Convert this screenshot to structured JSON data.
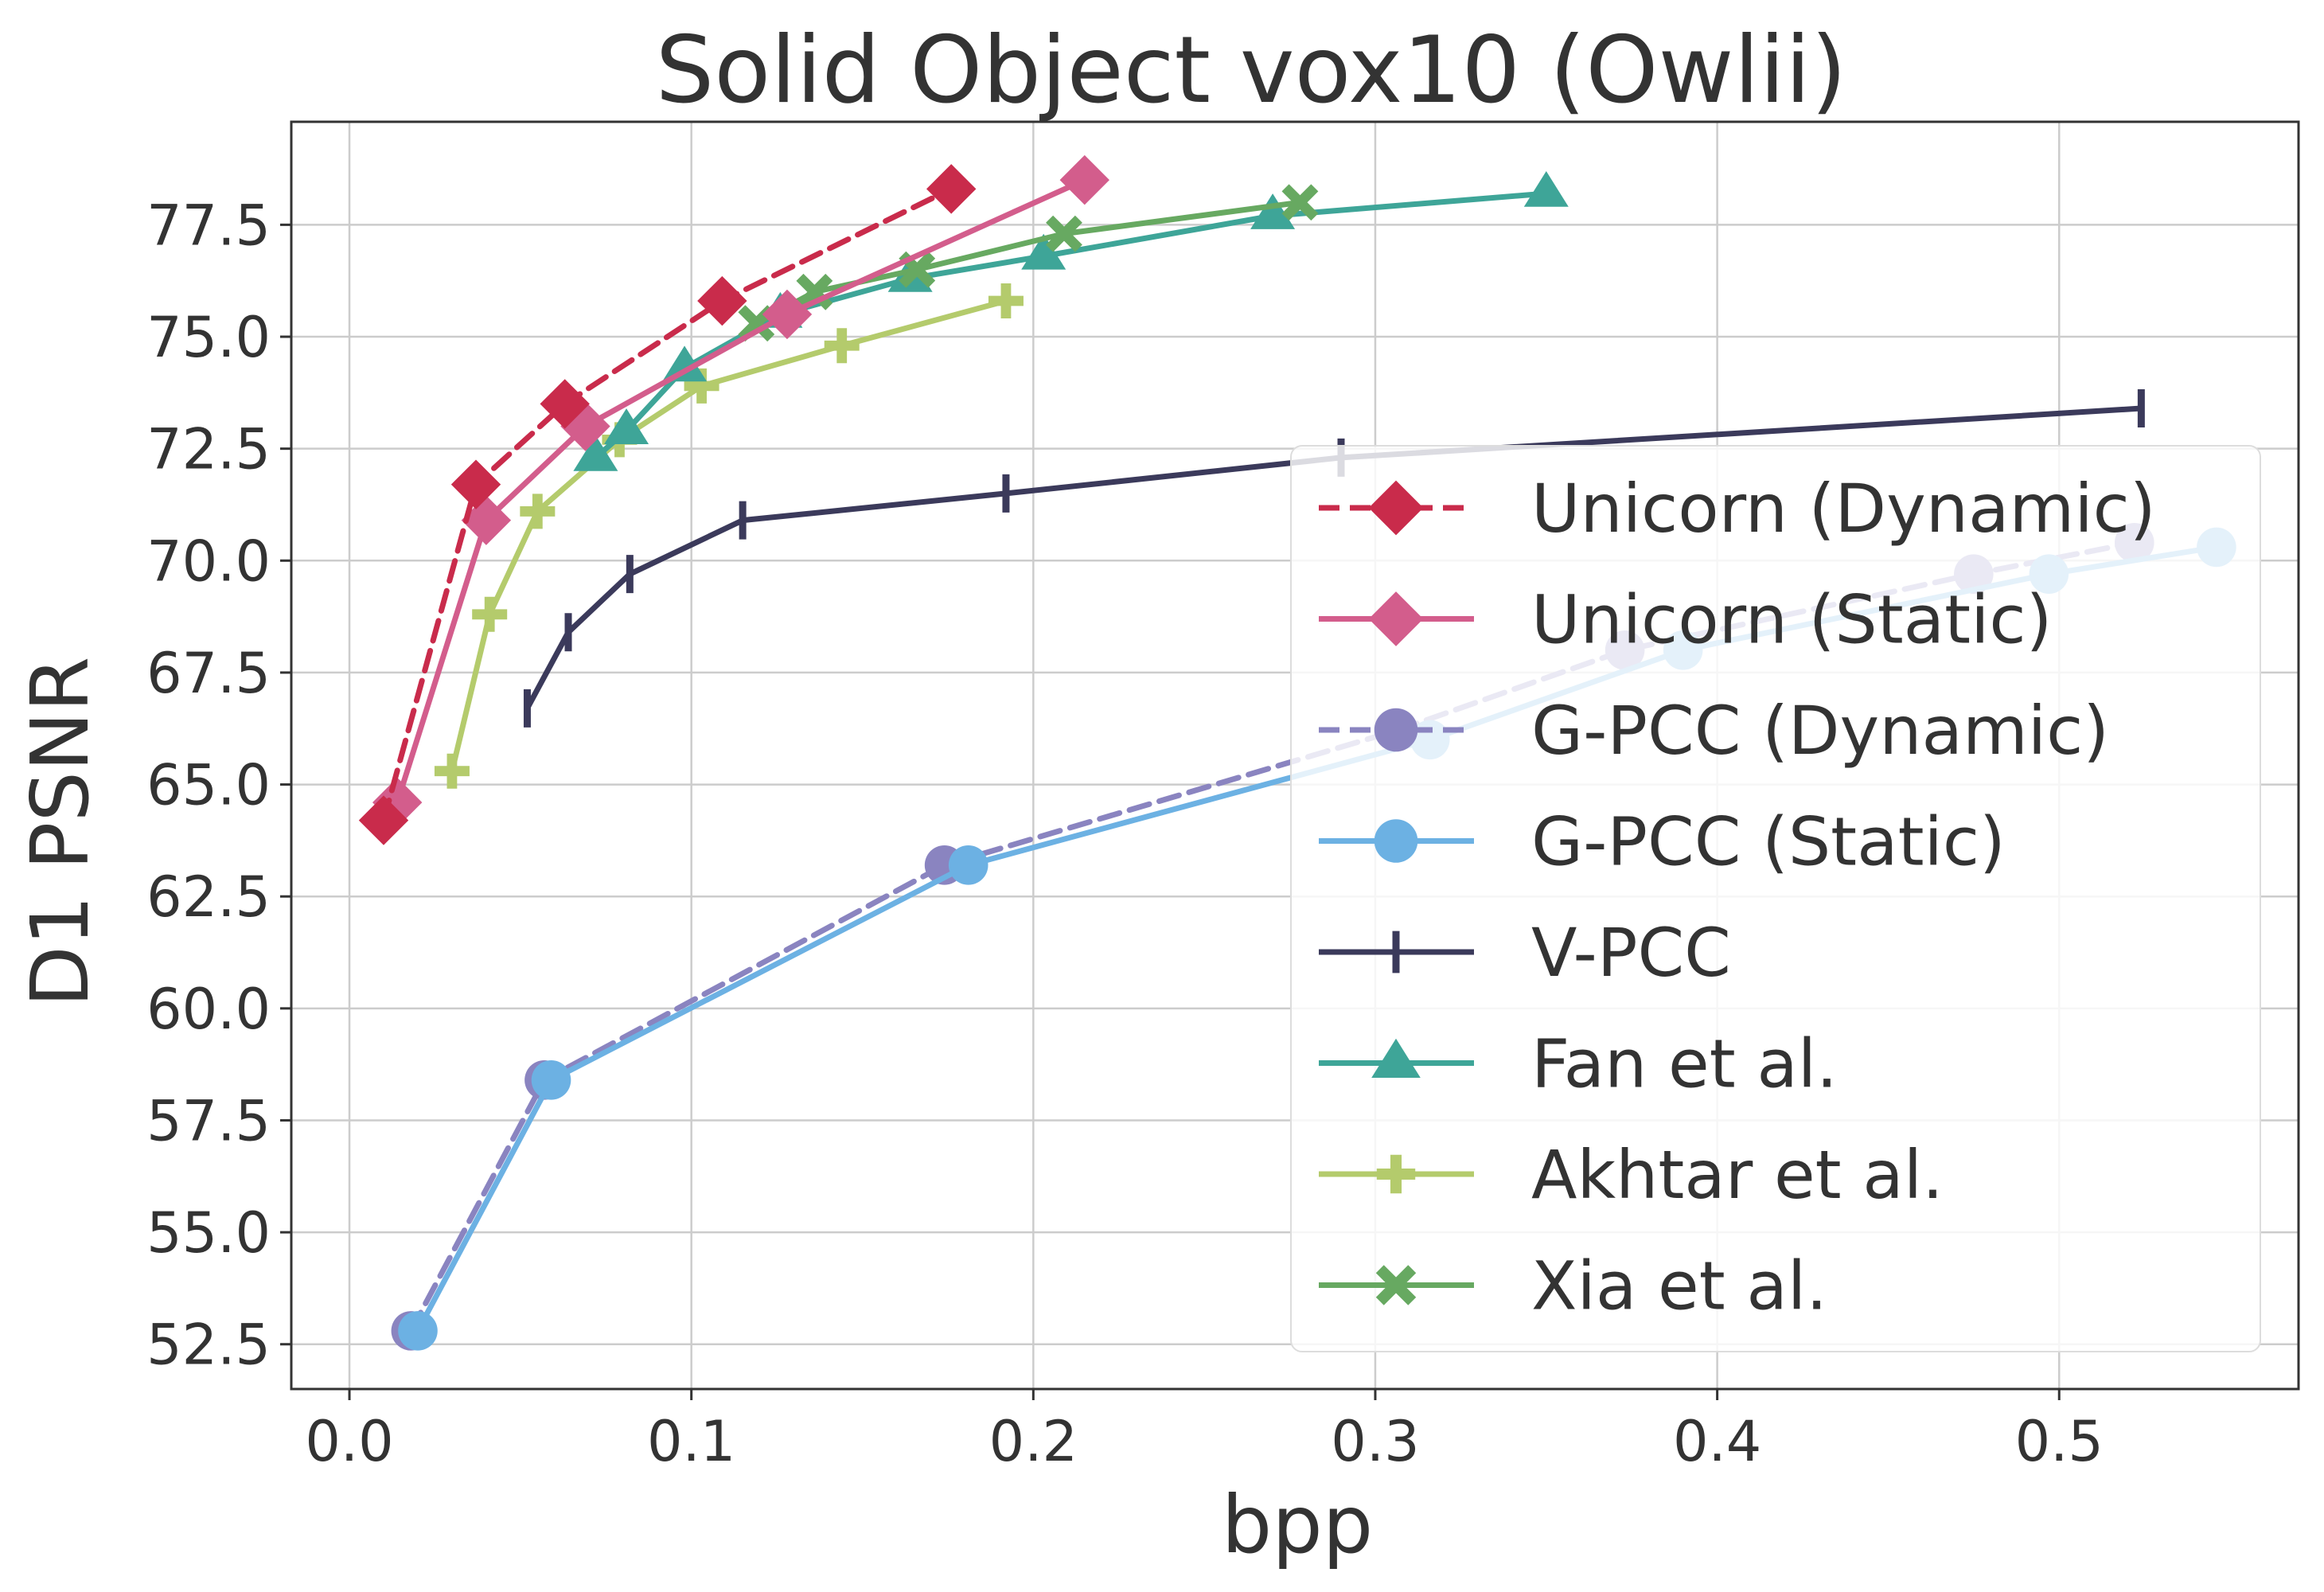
{
  "chart_data": {
    "type": "line",
    "title": "Solid Object vox10 (Owlii)",
    "xlabel": "bpp",
    "ylabel": "D1 PSNR",
    "xlim": [
      -0.017,
      0.57
    ],
    "ylim": [
      51.5,
      79.8
    ],
    "xticks": [
      0.0,
      0.1,
      0.2,
      0.3,
      0.4,
      0.5
    ],
    "xtick_labels": [
      "0.0",
      "0.1",
      "0.2",
      "0.3",
      "0.4",
      "0.5"
    ],
    "yticks": [
      52.5,
      55.0,
      57.5,
      60.0,
      62.5,
      65.0,
      67.5,
      70.0,
      72.5,
      75.0,
      77.5
    ],
    "ytick_labels": [
      "52.5",
      "55.0",
      "57.5",
      "60.0",
      "62.5",
      "65.0",
      "67.5",
      "70.0",
      "72.5",
      "75.0",
      "77.5"
    ],
    "grid": true,
    "legend_position": "center-right",
    "series": [
      {
        "name": "G-PCC (Dynamic)",
        "color": "#8a84c0",
        "dash": true,
        "marker": "circle",
        "x": [
          0.018,
          0.057,
          0.174,
          0.306,
          0.373,
          0.475,
          0.522
        ],
        "y": [
          52.8,
          58.4,
          63.2,
          66.2,
          68.0,
          69.7,
          70.4
        ]
      },
      {
        "name": "G-PCC (Static)",
        "color": "#6cb1e3",
        "dash": false,
        "marker": "circle",
        "x": [
          0.02,
          0.059,
          0.181,
          0.316,
          0.39,
          0.497,
          0.546
        ],
        "y": [
          52.8,
          58.4,
          63.2,
          66.0,
          68.0,
          69.7,
          70.3
        ]
      },
      {
        "name": "V-PCC",
        "color": "#3b3a5b",
        "dash": false,
        "marker": "vline",
        "x": [
          0.052,
          0.064,
          0.082,
          0.115,
          0.192,
          0.29,
          0.524
        ],
        "y": [
          66.7,
          68.4,
          69.7,
          70.9,
          71.5,
          72.3,
          73.4
        ]
      },
      {
        "name": "Akhtar et al.",
        "color": "#b4cb6c",
        "dash": false,
        "marker": "plus",
        "x": [
          0.03,
          0.041,
          0.055,
          0.079,
          0.103,
          0.144,
          0.192
        ],
        "y": [
          65.3,
          68.8,
          71.1,
          72.7,
          73.9,
          74.8,
          75.8
        ]
      },
      {
        "name": "Fan et al.",
        "color": "#3ea598",
        "dash": false,
        "marker": "triangle",
        "x": [
          0.072,
          0.081,
          0.098,
          0.126,
          0.164,
          0.203,
          0.27,
          0.35
        ],
        "y": [
          72.3,
          72.9,
          74.3,
          75.5,
          76.3,
          76.8,
          77.7,
          78.2
        ]
      },
      {
        "name": "Xia et al.",
        "color": "#67a961",
        "dash": false,
        "marker": "x",
        "x": [
          0.119,
          0.136,
          0.166,
          0.209,
          0.278
        ],
        "y": [
          75.3,
          76.0,
          76.5,
          77.3,
          78.0
        ]
      },
      {
        "name": "Unicorn (Static)",
        "color": "#d35d8c",
        "dash": false,
        "marker": "diamond",
        "x": [
          0.014,
          0.04,
          0.069,
          0.128,
          0.215
        ],
        "y": [
          64.6,
          70.9,
          73.0,
          75.5,
          78.5
        ]
      },
      {
        "name": "Unicorn (Dynamic)",
        "color": "#c92b4b",
        "dash": true,
        "marker": "diamond",
        "x": [
          0.01,
          0.037,
          0.063,
          0.109,
          0.176
        ],
        "y": [
          64.2,
          71.7,
          73.5,
          75.8,
          78.3
        ]
      }
    ],
    "legend_order": [
      "Unicorn (Dynamic)",
      "Unicorn (Static)",
      "G-PCC (Dynamic)",
      "G-PCC (Static)",
      "V-PCC",
      "Fan et al.",
      "Akhtar et al.",
      "Xia et al."
    ]
  }
}
